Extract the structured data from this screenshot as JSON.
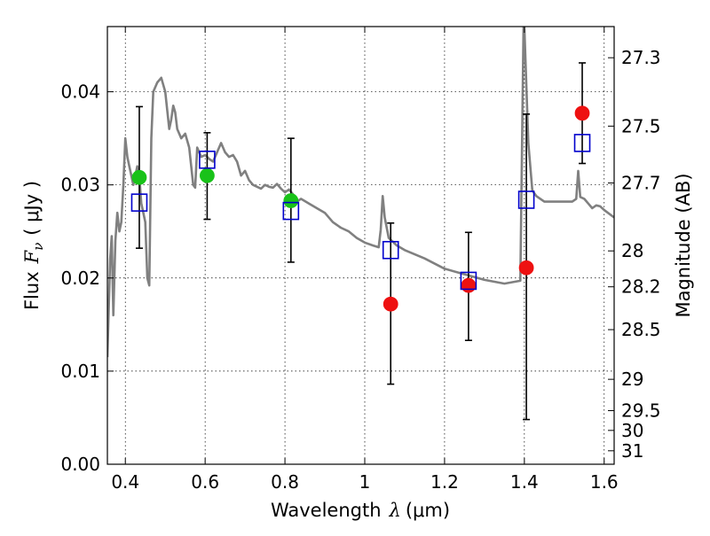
{
  "chart_data": {
    "type": "scatter",
    "xlabel": "Wavelength",
    "xlabel_symbol": "λ",
    "xlabel_unit": "(μm)",
    "ylabel": "Flux",
    "ylabel_symbol": "F",
    "ylabel_subscript": "ν",
    "ylabel_unit": "( μJy )",
    "y2label": "Magnitude (AB)",
    "xlim": [
      0.355,
      1.625
    ],
    "ylim": [
      0.0,
      0.047
    ],
    "grid": true,
    "grid_style": "dotted",
    "x_ticks": [
      {
        "value": 0.4,
        "label": "0.4"
      },
      {
        "value": 0.6,
        "label": "0.6"
      },
      {
        "value": 0.8,
        "label": "0.8"
      },
      {
        "value": 1.0,
        "label": "1"
      },
      {
        "value": 1.2,
        "label": "1.2"
      },
      {
        "value": 1.4,
        "label": "1.4"
      },
      {
        "value": 1.6,
        "label": "1.6"
      }
    ],
    "y_ticks": [
      {
        "value": 0.0,
        "label": "0.00"
      },
      {
        "value": 0.01,
        "label": "0.01"
      },
      {
        "value": 0.02,
        "label": "0.02"
      },
      {
        "value": 0.03,
        "label": "0.03"
      },
      {
        "value": 0.04,
        "label": "0.04"
      }
    ],
    "y2_ticks": [
      {
        "mag": 27.3,
        "label": "27.3"
      },
      {
        "mag": 27.5,
        "label": "27.5"
      },
      {
        "mag": 27.7,
        "label": "27.7"
      },
      {
        "mag": 28.0,
        "label": "28"
      },
      {
        "mag": 28.2,
        "label": "28.2"
      },
      {
        "mag": 28.5,
        "label": "28.5"
      },
      {
        "mag": 29.0,
        "label": "29"
      },
      {
        "mag": 29.5,
        "label": "29.5"
      },
      {
        "mag": 30.0,
        "label": "30"
      },
      {
        "mag": 31.0,
        "label": "31"
      }
    ],
    "colors": {
      "model": "#808080",
      "green": "#19c219",
      "red": "#ee1111",
      "box": "#0000cc",
      "errorbar": "#000000",
      "grid": "#000000"
    },
    "model_spectrum": {
      "name": "model SED",
      "x": [
        0.355,
        0.362,
        0.366,
        0.37,
        0.375,
        0.38,
        0.385,
        0.39,
        0.395,
        0.4,
        0.405,
        0.41,
        0.415,
        0.42,
        0.425,
        0.43,
        0.435,
        0.44,
        0.445,
        0.45,
        0.455,
        0.46,
        0.465,
        0.47,
        0.48,
        0.49,
        0.5,
        0.51,
        0.515,
        0.52,
        0.525,
        0.53,
        0.54,
        0.55,
        0.56,
        0.57,
        0.575,
        0.58,
        0.59,
        0.6,
        0.61,
        0.62,
        0.63,
        0.64,
        0.65,
        0.66,
        0.67,
        0.68,
        0.69,
        0.7,
        0.71,
        0.72,
        0.73,
        0.74,
        0.75,
        0.76,
        0.77,
        0.78,
        0.79,
        0.8,
        0.81,
        0.82,
        0.83,
        0.84,
        0.86,
        0.88,
        0.9,
        0.92,
        0.94,
        0.96,
        0.98,
        1.0,
        1.02,
        1.035,
        1.04,
        1.045,
        1.05,
        1.06,
        1.08,
        1.1,
        1.15,
        1.2,
        1.25,
        1.3,
        1.35,
        1.39,
        1.392,
        1.398,
        1.4,
        1.41,
        1.42,
        1.43,
        1.44,
        1.45,
        1.5,
        1.52,
        1.53,
        1.535,
        1.54,
        1.55,
        1.56,
        1.57,
        1.58,
        1.59,
        1.6,
        1.625
      ],
      "y": [
        0.0115,
        0.022,
        0.0245,
        0.016,
        0.024,
        0.027,
        0.025,
        0.026,
        0.03,
        0.035,
        0.033,
        0.032,
        0.031,
        0.03,
        0.031,
        0.032,
        0.031,
        0.028,
        0.027,
        0.026,
        0.02,
        0.0192,
        0.035,
        0.04,
        0.041,
        0.0415,
        0.04,
        0.036,
        0.037,
        0.0385,
        0.0378,
        0.036,
        0.035,
        0.0355,
        0.034,
        0.03,
        0.0297,
        0.034,
        0.033,
        0.0332,
        0.0328,
        0.0325,
        0.0335,
        0.0345,
        0.0335,
        0.033,
        0.0332,
        0.0325,
        0.031,
        0.0315,
        0.0305,
        0.03,
        0.0298,
        0.0296,
        0.03,
        0.0298,
        0.0297,
        0.0301,
        0.0296,
        0.0292,
        0.0295,
        0.029,
        0.0282,
        0.0285,
        0.028,
        0.0275,
        0.027,
        0.026,
        0.0254,
        0.025,
        0.0243,
        0.0238,
        0.0235,
        0.0233,
        0.0252,
        0.0288,
        0.0265,
        0.0243,
        0.0235,
        0.023,
        0.0221,
        0.021,
        0.0204,
        0.0198,
        0.0194,
        0.0197,
        0.0265,
        0.047,
        0.047,
        0.0345,
        0.0294,
        0.0288,
        0.0285,
        0.0282,
        0.0282,
        0.0282,
        0.0285,
        0.0315,
        0.0287,
        0.0285,
        0.028,
        0.0275,
        0.0278,
        0.0277,
        0.0273,
        0.0265
      ]
    },
    "series": [
      {
        "name": "green",
        "marker": "circle",
        "color": "#19c219",
        "points": [
          {
            "x": 0.435,
            "y": 0.0308
          },
          {
            "x": 0.605,
            "y": 0.031
          },
          {
            "x": 0.815,
            "y": 0.0283
          }
        ]
      },
      {
        "name": "red",
        "marker": "circle",
        "color": "#ee1111",
        "points": [
          {
            "x": 1.065,
            "y": 0.0172
          },
          {
            "x": 1.26,
            "y": 0.0192
          },
          {
            "x": 1.405,
            "y": 0.0211
          },
          {
            "x": 1.545,
            "y": 0.0377
          }
        ]
      },
      {
        "name": "box",
        "marker": "square",
        "color": "#0000cc",
        "points": [
          {
            "x": 0.435,
            "y": 0.0281
          },
          {
            "x": 0.605,
            "y": 0.0327
          },
          {
            "x": 0.815,
            "y": 0.0272
          },
          {
            "x": 1.065,
            "y": 0.023
          },
          {
            "x": 1.26,
            "y": 0.0197
          },
          {
            "x": 1.405,
            "y": 0.0284
          },
          {
            "x": 1.545,
            "y": 0.0345
          }
        ]
      }
    ],
    "error_bars": [
      {
        "x": 0.435,
        "y_low": 0.0232,
        "y_high": 0.0384
      },
      {
        "x": 0.605,
        "y_low": 0.0263,
        "y_high": 0.0356
      },
      {
        "x": 0.815,
        "y_low": 0.0217,
        "y_high": 0.035
      },
      {
        "x": 1.065,
        "y_low": 0.0086,
        "y_high": 0.0259
      },
      {
        "x": 1.26,
        "y_low": 0.0133,
        "y_high": 0.0249
      },
      {
        "x": 1.405,
        "y_low": 0.0048,
        "y_high": 0.0376
      },
      {
        "x": 1.545,
        "y_low": 0.0323,
        "y_high": 0.0431
      }
    ]
  }
}
